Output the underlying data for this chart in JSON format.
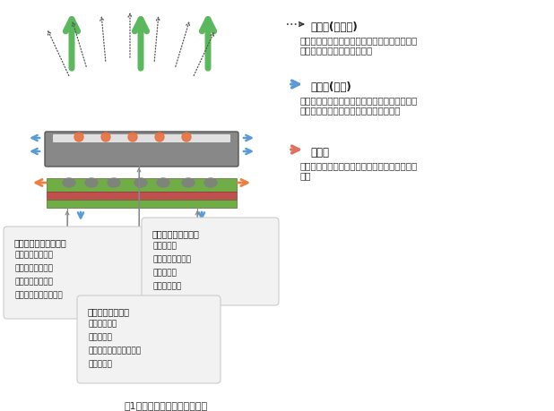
{
  "bg_color": "#ffffff",
  "title_text": "図1　放熱経路と熱抵抗の要因",
  "right_panel": {
    "radiation_title": "熱放射(ふく射)",
    "radiation_desc": "物体から、熱エネルギーが電磁波という形で放\n射されることによる伝熱現象",
    "convection_title": "熱伝達(対流)",
    "convection_desc": "固体面から流体に熱伝導で伝わり、熱を受けた\n流体が移動することで熱も移動する現象",
    "conduction_title": "熱伝導",
    "conduction_desc": "分子間の振動、もしくは自由電子による熱移動\n現象"
  },
  "box1_title": "パッケージによる影響",
  "box1_items": [
    "・パッケージ材料",
    "・パッケージ構造",
    "・パッケージ寸法",
    "・ヒート・スプレッダ"
  ],
  "box2_title": "使用環境による影響",
  "box2_items": [
    "・冷却条件",
    "・実装基板の構造",
    "・実装密度",
    "・雰囲気温度"
  ],
  "box3_title": "チップによる影響",
  "box3_items": [
    "・チップ面積",
    "・発熱分布",
    "　（ホット・スポット）",
    "・消費電力"
  ],
  "arrow_green": "#5cb85c",
  "arrow_blue": "#5b9bd5",
  "arrow_orange": "#e88040",
  "gray_dark": "#606060",
  "gray_medium": "#909090",
  "gray_light": "#c0c0c0",
  "pcb_red": "#c0504d",
  "pcb_green": "#70ad47",
  "pcb_gray": "#808080",
  "pkg_color": "#888888",
  "pkg_edge": "#555555",
  "heat_spot_color": "#e87040",
  "radiation_arrow_color": "#333333",
  "box_face": "#f2f2f2",
  "box_edge": "#cccccc",
  "line_color": "#888888"
}
